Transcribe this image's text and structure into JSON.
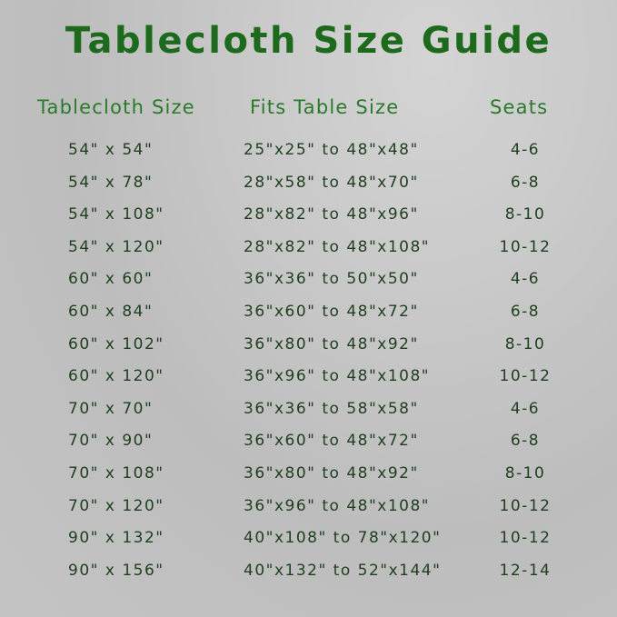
{
  "title": "Tablecloth Size Guide",
  "headers": [
    "Tablecloth Size",
    "Fits Table Size",
    "Seats"
  ],
  "rows": [
    [
      "54\" x 54\"",
      "25\"x25\" to 48\"x48\"",
      "4-6"
    ],
    [
      "54\" x 78\"",
      "28\"x58\" to 48\"x70\"",
      "6-8"
    ],
    [
      "54\" x 108\"",
      "28\"x82\" to 48\"x96\"",
      "8-10"
    ],
    [
      "54\" x 120\"",
      "28\"x82\" to 48\"x108\"",
      "10-12"
    ],
    [
      "60\" x 60\"",
      "36\"x36\" to 50\"x50\"",
      "4-6"
    ],
    [
      "60\" x 84\"",
      "36\"x60\" to 48\"x72\"",
      "6-8"
    ],
    [
      "60\" x 102\"",
      "36\"x80\" to 48\"x92\"",
      "8-10"
    ],
    [
      "60\" x 120\"",
      "36\"x96\" to 48\"x108\"",
      "10-12"
    ],
    [
      "70\" x 70\"",
      "36\"x36\" to 58\"x58\"",
      "4-6"
    ],
    [
      "70\" x 90\"",
      "36\"x60\" to 48\"x72\"",
      "6-8"
    ],
    [
      "70\" x 108\"",
      "36\"x80\" to 48\"x92\"",
      "8-10"
    ],
    [
      "70\" x 120\"",
      "36\"x96\" to 48\"x108\"",
      "10-12"
    ],
    [
      "90\" x 132\"",
      "40\"x108\" to 78\"x120\"",
      "10-12"
    ],
    [
      "90\" x 156\"",
      "40\"x132\" to 52\"x144\"",
      "12-14"
    ]
  ],
  "colors": {
    "title": "#1d6a1d",
    "header": "#2a7a2a",
    "text": "#1f3f1f",
    "background": "#c9c9c9"
  }
}
